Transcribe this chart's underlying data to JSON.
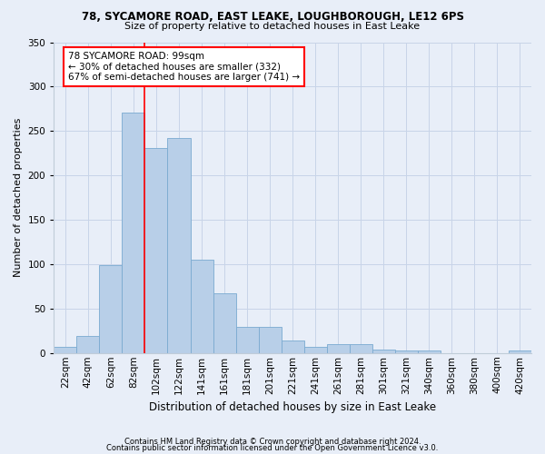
{
  "title1": "78, SYCAMORE ROAD, EAST LEAKE, LOUGHBOROUGH, LE12 6PS",
  "title2": "Size of property relative to detached houses in East Leake",
  "xlabel": "Distribution of detached houses by size in East Leake",
  "ylabel": "Number of detached properties",
  "footnote1": "Contains HM Land Registry data © Crown copyright and database right 2024.",
  "footnote2": "Contains public sector information licensed under the Open Government Licence v3.0.",
  "bar_labels": [
    "22sqm",
    "42sqm",
    "62sqm",
    "82sqm",
    "102sqm",
    "122sqm",
    "141sqm",
    "161sqm",
    "181sqm",
    "201sqm",
    "221sqm",
    "241sqm",
    "261sqm",
    "281sqm",
    "301sqm",
    "321sqm",
    "340sqm",
    "360sqm",
    "380sqm",
    "400sqm",
    "420sqm"
  ],
  "bar_values": [
    7,
    19,
    99,
    271,
    231,
    242,
    105,
    67,
    29,
    29,
    14,
    7,
    10,
    10,
    4,
    3,
    3,
    0,
    0,
    0,
    3
  ],
  "bar_color": "#b8cfe8",
  "bar_edge_color": "#7aaad0",
  "grid_color": "#c8d4e8",
  "bg_color": "#e8eef8",
  "property_line_color": "red",
  "annotation_text": "78 SYCAMORE ROAD: 99sqm\n← 30% of detached houses are smaller (332)\n67% of semi-detached houses are larger (741) →",
  "annotation_box_color": "white",
  "annotation_box_edge": "red",
  "ylim": [
    0,
    350
  ],
  "yticks": [
    0,
    50,
    100,
    150,
    200,
    250,
    300,
    350
  ],
  "line_index": 4.0,
  "title1_fontsize": 8.5,
  "title2_fontsize": 8.0,
  "ylabel_fontsize": 8.0,
  "xlabel_fontsize": 8.5,
  "tick_fontsize": 7.5,
  "annot_fontsize": 7.5,
  "footnote_fontsize": 6.0
}
